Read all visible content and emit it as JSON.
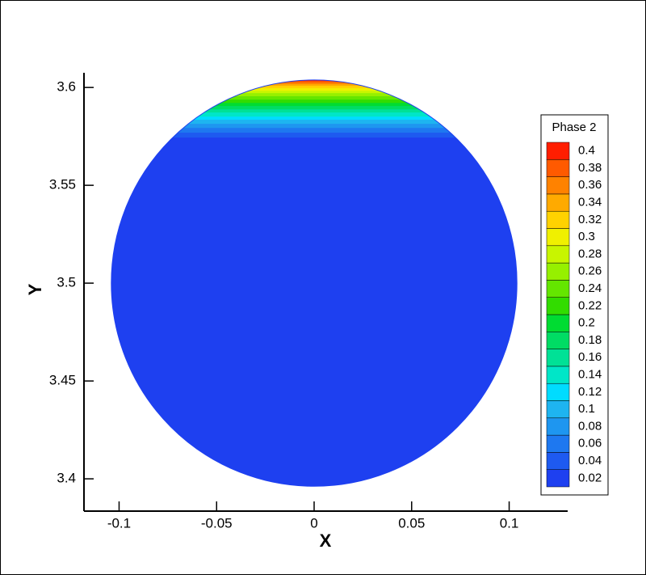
{
  "chart_data": {
    "type": "contour",
    "x_label": "X",
    "y_label": "Y",
    "xlim": [
      -0.118,
      0.13
    ],
    "ylim": [
      3.3835,
      3.6075
    ],
    "xticks": [
      -0.1,
      -0.05,
      0,
      0.05,
      0.1
    ],
    "yticks": [
      3.4,
      3.45,
      3.5,
      3.55,
      3.6
    ],
    "domain": {
      "center": [
        0,
        3.5
      ],
      "radius": 0.104
    },
    "legend": {
      "title": "Phase 2",
      "position": "right"
    },
    "levels": [
      0.02,
      0.04,
      0.06,
      0.08,
      0.1,
      0.12,
      0.14,
      0.16,
      0.18,
      0.2,
      0.22,
      0.24,
      0.26,
      0.28,
      0.3,
      0.32,
      0.34,
      0.36,
      0.38,
      0.4
    ],
    "colors": [
      "#1e40f0",
      "#1e5af0",
      "#1e78f0",
      "#1e96f0",
      "#1eb4f0",
      "#00dcff",
      "#00e6c8",
      "#00e196",
      "#00dc64",
      "#00dc32",
      "#32dc00",
      "#64e600",
      "#96f000",
      "#c8f500",
      "#f0f000",
      "#ffd200",
      "#ffaa00",
      "#ff8200",
      "#ff5a00",
      "#ff1e00"
    ],
    "band_bottom_y": [
      3.396,
      3.5744,
      3.5769,
      3.5793,
      3.5814,
      3.5835,
      3.5851,
      3.5872,
      3.5888,
      3.5905,
      3.5921,
      3.5938,
      3.5955,
      3.5971,
      3.5983,
      3.5996,
      3.6008,
      3.6017,
      3.6025,
      3.6033
    ]
  }
}
